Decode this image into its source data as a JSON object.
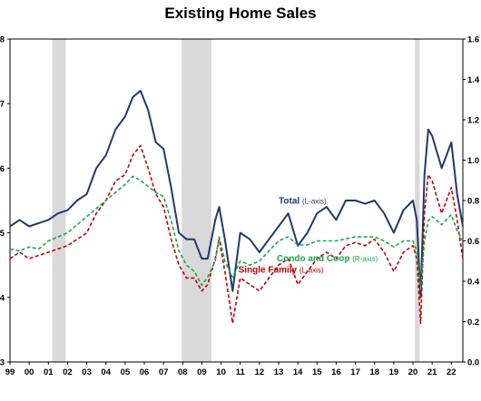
{
  "chart_data": {
    "type": "line",
    "title": "Existing Home Sales",
    "x_ticks": [
      "99",
      "00",
      "01",
      "02",
      "03",
      "04",
      "05",
      "06",
      "07",
      "08",
      "09",
      "10",
      "11",
      "12",
      "13",
      "14",
      "15",
      "16",
      "17",
      "18",
      "19",
      "20",
      "21",
      "22"
    ],
    "x_range": [
      1999.0,
      2022.6
    ],
    "left_axis": {
      "range": [
        3,
        8
      ],
      "tick_labels": [
        "3",
        "4",
        "5",
        "6",
        "7",
        "8"
      ]
    },
    "right_axis": {
      "range": [
        0.0,
        1.6
      ],
      "tick_labels": [
        "0.0",
        "0.2",
        "0.4",
        "0.6",
        "0.8",
        "1.0",
        "1.2",
        "1.4",
        "1.6"
      ]
    },
    "recessions": [
      [
        2001.2,
        2001.9
      ],
      [
        2007.95,
        2009.5
      ],
      [
        2020.1,
        2020.35
      ]
    ],
    "series": [
      {
        "name": "Total",
        "axis_note": "(L-axis)",
        "axis": "left",
        "color": "#1f3a6e",
        "dash": "solid",
        "points": [
          [
            1999.0,
            5.1
          ],
          [
            1999.5,
            5.2
          ],
          [
            2000.0,
            5.1
          ],
          [
            2000.5,
            5.15
          ],
          [
            2001.0,
            5.2
          ],
          [
            2001.5,
            5.3
          ],
          [
            2002.0,
            5.35
          ],
          [
            2002.5,
            5.5
          ],
          [
            2003.0,
            5.6
          ],
          [
            2003.5,
            6.0
          ],
          [
            2004.0,
            6.2
          ],
          [
            2004.5,
            6.6
          ],
          [
            2005.0,
            6.8
          ],
          [
            2005.4,
            7.1
          ],
          [
            2005.8,
            7.2
          ],
          [
            2006.2,
            6.9
          ],
          [
            2006.6,
            6.4
          ],
          [
            2007.0,
            6.3
          ],
          [
            2007.4,
            5.7
          ],
          [
            2007.8,
            5.0
          ],
          [
            2008.2,
            4.9
          ],
          [
            2008.6,
            4.9
          ],
          [
            2009.0,
            4.6
          ],
          [
            2009.3,
            4.6
          ],
          [
            2009.7,
            5.2
          ],
          [
            2009.9,
            5.4
          ],
          [
            2010.2,
            4.9
          ],
          [
            2010.6,
            4.1
          ],
          [
            2011.0,
            5.0
          ],
          [
            2011.5,
            4.9
          ],
          [
            2012.0,
            4.7
          ],
          [
            2012.5,
            4.9
          ],
          [
            2013.0,
            5.1
          ],
          [
            2013.5,
            5.3
          ],
          [
            2014.0,
            4.8
          ],
          [
            2014.5,
            5.0
          ],
          [
            2015.0,
            5.3
          ],
          [
            2015.5,
            5.4
          ],
          [
            2016.0,
            5.2
          ],
          [
            2016.5,
            5.5
          ],
          [
            2017.0,
            5.5
          ],
          [
            2017.5,
            5.45
          ],
          [
            2018.0,
            5.5
          ],
          [
            2018.5,
            5.3
          ],
          [
            2019.0,
            5.0
          ],
          [
            2019.5,
            5.35
          ],
          [
            2020.0,
            5.5
          ],
          [
            2020.2,
            5.2
          ],
          [
            2020.4,
            4.0
          ],
          [
            2020.6,
            5.9
          ],
          [
            2020.8,
            6.6
          ],
          [
            2021.0,
            6.5
          ],
          [
            2021.5,
            6.0
          ],
          [
            2022.0,
            6.4
          ],
          [
            2022.3,
            5.6
          ],
          [
            2022.6,
            5.1
          ]
        ]
      },
      {
        "name": "Single Family",
        "axis_note": "(L-axis)",
        "axis": "left",
        "color": "#c00000",
        "dash": "dashed",
        "points": [
          [
            1999.0,
            4.6
          ],
          [
            1999.5,
            4.7
          ],
          [
            2000.0,
            4.6
          ],
          [
            2000.5,
            4.65
          ],
          [
            2001.0,
            4.7
          ],
          [
            2001.5,
            4.75
          ],
          [
            2002.0,
            4.8
          ],
          [
            2002.5,
            4.9
          ],
          [
            2003.0,
            5.0
          ],
          [
            2003.5,
            5.3
          ],
          [
            2004.0,
            5.5
          ],
          [
            2004.5,
            5.8
          ],
          [
            2005.0,
            5.9
          ],
          [
            2005.4,
            6.2
          ],
          [
            2005.8,
            6.35
          ],
          [
            2006.2,
            6.0
          ],
          [
            2006.6,
            5.6
          ],
          [
            2007.0,
            5.4
          ],
          [
            2007.4,
            4.9
          ],
          [
            2007.8,
            4.5
          ],
          [
            2008.2,
            4.3
          ],
          [
            2008.6,
            4.3
          ],
          [
            2009.0,
            4.1
          ],
          [
            2009.3,
            4.2
          ],
          [
            2009.7,
            4.6
          ],
          [
            2009.9,
            4.9
          ],
          [
            2010.2,
            4.4
          ],
          [
            2010.6,
            3.6
          ],
          [
            2011.0,
            4.3
          ],
          [
            2011.5,
            4.2
          ],
          [
            2012.0,
            4.1
          ],
          [
            2012.5,
            4.3
          ],
          [
            2013.0,
            4.5
          ],
          [
            2013.5,
            4.6
          ],
          [
            2014.0,
            4.2
          ],
          [
            2014.5,
            4.4
          ],
          [
            2015.0,
            4.6
          ],
          [
            2015.5,
            4.7
          ],
          [
            2016.0,
            4.6
          ],
          [
            2016.5,
            4.8
          ],
          [
            2017.0,
            4.85
          ],
          [
            2017.5,
            4.8
          ],
          [
            2018.0,
            4.9
          ],
          [
            2018.5,
            4.7
          ],
          [
            2019.0,
            4.4
          ],
          [
            2019.5,
            4.7
          ],
          [
            2020.0,
            4.8
          ],
          [
            2020.2,
            4.6
          ],
          [
            2020.4,
            3.6
          ],
          [
            2020.6,
            5.3
          ],
          [
            2020.8,
            5.9
          ],
          [
            2021.0,
            5.8
          ],
          [
            2021.5,
            5.3
          ],
          [
            2022.0,
            5.7
          ],
          [
            2022.3,
            5.2
          ],
          [
            2022.6,
            4.6
          ]
        ]
      },
      {
        "name": "Condo and Coop",
        "axis_note": "(R-axis)",
        "axis": "right",
        "color": "#1ca64c",
        "dash": "dashed",
        "points": [
          [
            1999.0,
            0.56
          ],
          [
            1999.5,
            0.55
          ],
          [
            2000.0,
            0.57
          ],
          [
            2000.5,
            0.56
          ],
          [
            2001.0,
            0.6
          ],
          [
            2001.5,
            0.62
          ],
          [
            2002.0,
            0.64
          ],
          [
            2002.5,
            0.68
          ],
          [
            2003.0,
            0.72
          ],
          [
            2003.5,
            0.76
          ],
          [
            2004.0,
            0.8
          ],
          [
            2004.5,
            0.84
          ],
          [
            2005.0,
            0.88
          ],
          [
            2005.4,
            0.92
          ],
          [
            2005.8,
            0.9
          ],
          [
            2006.2,
            0.87
          ],
          [
            2006.6,
            0.84
          ],
          [
            2007.0,
            0.82
          ],
          [
            2007.4,
            0.7
          ],
          [
            2007.8,
            0.55
          ],
          [
            2008.2,
            0.48
          ],
          [
            2008.6,
            0.45
          ],
          [
            2009.0,
            0.38
          ],
          [
            2009.3,
            0.42
          ],
          [
            2009.7,
            0.5
          ],
          [
            2009.9,
            0.62
          ],
          [
            2010.2,
            0.5
          ],
          [
            2010.6,
            0.42
          ],
          [
            2011.0,
            0.5
          ],
          [
            2011.5,
            0.48
          ],
          [
            2012.0,
            0.5
          ],
          [
            2012.5,
            0.55
          ],
          [
            2013.0,
            0.6
          ],
          [
            2013.5,
            0.62
          ],
          [
            2014.0,
            0.58
          ],
          [
            2014.5,
            0.58
          ],
          [
            2015.0,
            0.6
          ],
          [
            2015.5,
            0.6
          ],
          [
            2016.0,
            0.6
          ],
          [
            2016.5,
            0.61
          ],
          [
            2017.0,
            0.62
          ],
          [
            2017.5,
            0.62
          ],
          [
            2018.0,
            0.62
          ],
          [
            2018.5,
            0.6
          ],
          [
            2019.0,
            0.57
          ],
          [
            2019.5,
            0.6
          ],
          [
            2020.0,
            0.6
          ],
          [
            2020.2,
            0.55
          ],
          [
            2020.4,
            0.36
          ],
          [
            2020.6,
            0.6
          ],
          [
            2020.8,
            0.7
          ],
          [
            2021.0,
            0.72
          ],
          [
            2021.5,
            0.68
          ],
          [
            2022.0,
            0.73
          ],
          [
            2022.3,
            0.65
          ],
          [
            2022.6,
            0.6
          ]
        ]
      }
    ],
    "annotations": [
      {
        "series": "Total",
        "label": "Total",
        "note": "(L-axis)",
        "at": [
          2013.0,
          5.45
        ],
        "anchor": "end"
      },
      {
        "series": "Single Family",
        "label": "Single Family",
        "note": "(L-axis)",
        "at": [
          2010.9,
          4.38
        ],
        "anchor": "start"
      },
      {
        "series": "Condo and Coop",
        "label": "Condo and Coop",
        "note": "(R-axis)",
        "at": [
          2012.9,
          0.5
        ],
        "anchor": "start"
      }
    ]
  }
}
